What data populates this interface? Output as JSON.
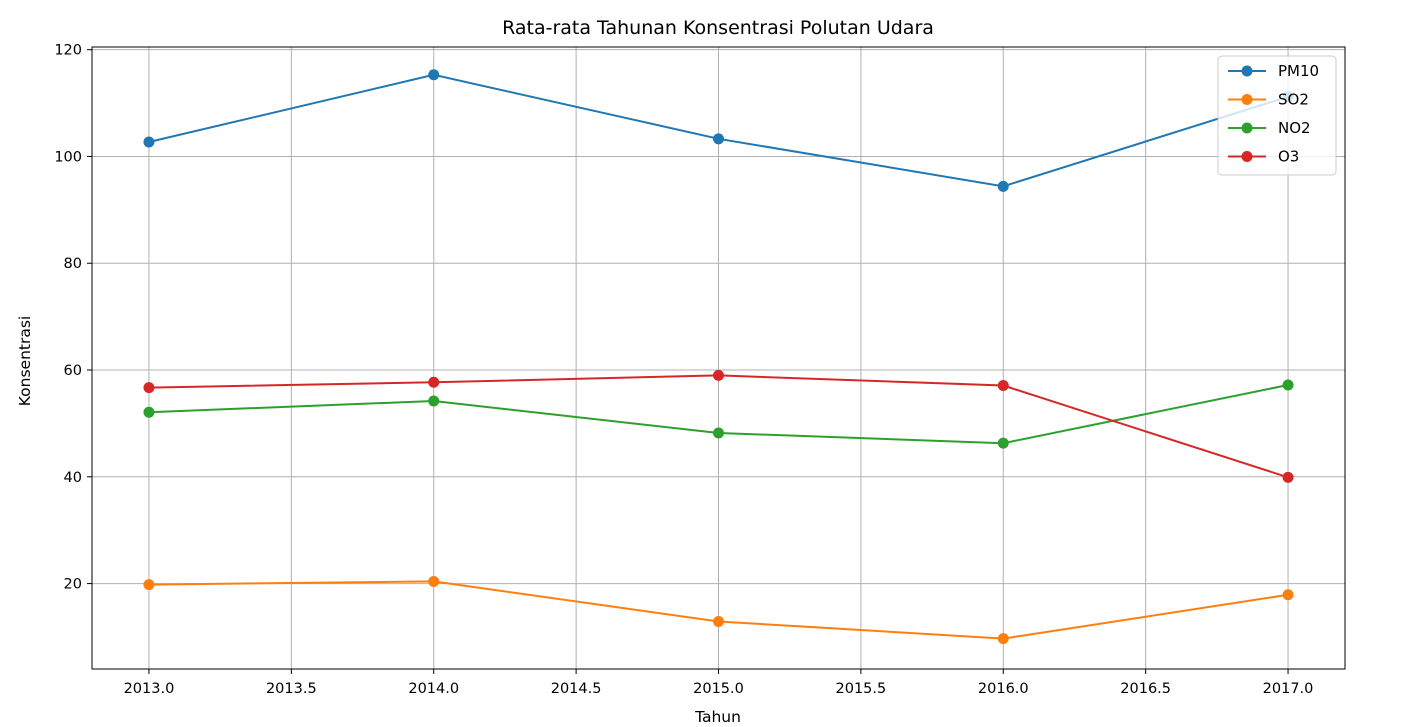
{
  "chart_data": {
    "type": "line",
    "title": "Rata-rata Tahunan Konsentrasi Polutan Udara",
    "xlabel": "Tahun",
    "ylabel": "Konsentrasi",
    "x": [
      2013,
      2014,
      2015,
      2016,
      2017
    ],
    "xlim": [
      2012.8,
      2017.2
    ],
    "ylim": [
      4,
      120.5
    ],
    "xticks": [
      "2013.0",
      "2013.5",
      "2014.0",
      "2014.5",
      "2015.0",
      "2015.5",
      "2016.0",
      "2016.5",
      "2017.0"
    ],
    "xtick_values": [
      2013.0,
      2013.5,
      2014.0,
      2014.5,
      2015.0,
      2015.5,
      2016.0,
      2016.5,
      2017.0
    ],
    "yticks": [
      "20",
      "40",
      "60",
      "80",
      "100",
      "120"
    ],
    "ytick_values": [
      20,
      40,
      60,
      80,
      100,
      120
    ],
    "grid": true,
    "legend_position": "top-right",
    "series": [
      {
        "name": "PM10",
        "color": "#1f77b4",
        "values": [
          102.7,
          115.3,
          103.3,
          94.4,
          111.2
        ]
      },
      {
        "name": "SO2",
        "color": "#ff7f0e",
        "values": [
          19.8,
          20.4,
          12.9,
          9.7,
          17.9
        ]
      },
      {
        "name": "NO2",
        "color": "#2ca02c",
        "values": [
          52.1,
          54.2,
          48.2,
          46.3,
          57.2
        ]
      },
      {
        "name": "O3",
        "color": "#d62728",
        "values": [
          56.7,
          57.7,
          59.0,
          57.1,
          39.9
        ]
      }
    ]
  }
}
